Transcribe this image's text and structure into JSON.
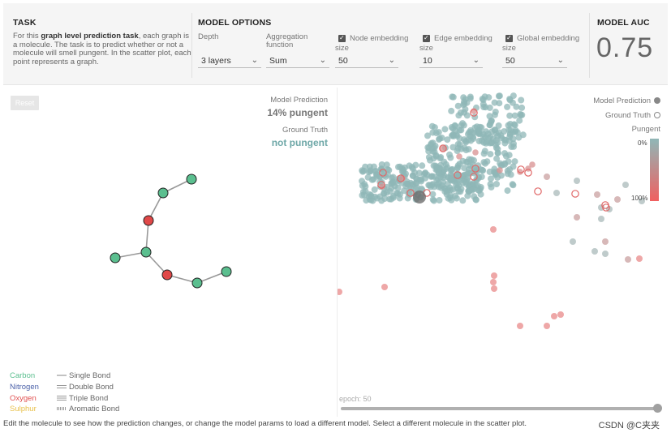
{
  "task": {
    "title": "TASK",
    "text_prefix": "For this ",
    "text_bold": "graph level prediction task",
    "text_suffix": ", each graph is a molecule. The task is to predict whether or not a molecule will smell pungent. In the scatter plot, each point represents a graph."
  },
  "options": {
    "title": "MODEL OPTIONS",
    "depth_label": "Depth",
    "depth_value": "3 layers",
    "aggregation_label_1": "Aggregation",
    "aggregation_label_2": "function",
    "aggregation_value": "Sum",
    "node_label": "Node embedding",
    "node_size_label": "size",
    "node_value": "50",
    "edge_label": "Edge embedding",
    "edge_size_label": "size",
    "edge_value": "10",
    "global_label": "Global embedding",
    "global_size_label": "size",
    "global_value": "50"
  },
  "auc": {
    "title": "MODEL AUC",
    "value": "0.75"
  },
  "molecule": {
    "reset_label": "Reset",
    "prediction_label": "Model Prediction",
    "prediction_value": "14% pungent",
    "truth_label": "Ground Truth",
    "truth_value": "not pungent",
    "atom_legend": [
      {
        "name": "Carbon",
        "color": "#5bbf8f"
      },
      {
        "name": "Nitrogen",
        "color": "#4a60a8"
      },
      {
        "name": "Oxygen",
        "color": "#e05050"
      },
      {
        "name": "Sulphur",
        "color": "#e8c04a"
      }
    ],
    "bond_legend": [
      "Single Bond",
      "Double Bond",
      "Triple Bond",
      "Aromatic Bond"
    ],
    "colors": {
      "carbon": "#5bbf8f",
      "oxygen": "#e04848",
      "bond": "#999999"
    }
  },
  "scatter": {
    "prediction_legend": "Model Prediction",
    "truth_legend": "Ground Truth",
    "pungent_label": "Pungent",
    "scale_top": "0%",
    "scale_bottom": "100%",
    "colors": {
      "low": "#8fb7b7",
      "high": "#f06060",
      "selected": "#666666"
    }
  },
  "epoch": {
    "label": "epoch: 50",
    "value": 50,
    "max": 50
  },
  "footer": "Edit the molecule to see how the prediction changes, or change the model params to load a different model. Select a different molecule in the scatter plot.",
  "watermark": "CSDN @C夹夹"
}
